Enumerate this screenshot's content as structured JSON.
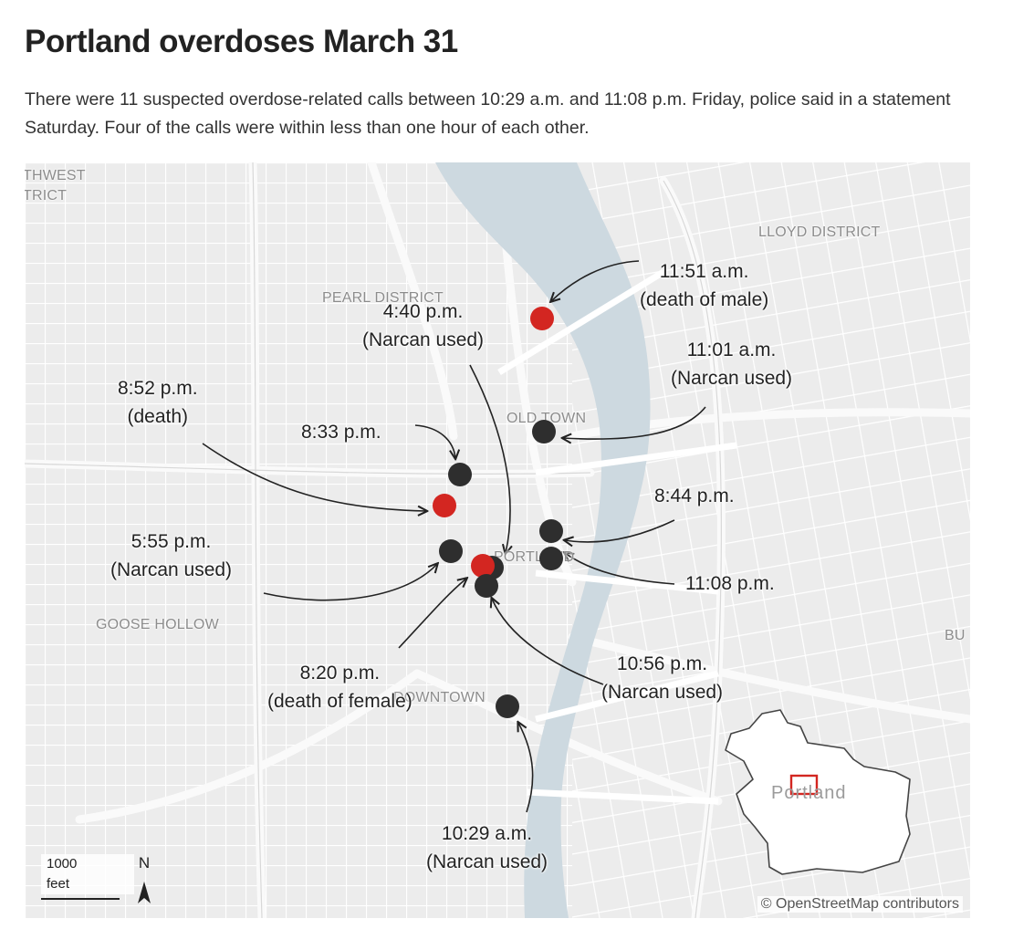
{
  "headline": "Portland overdoses March 31",
  "dek": "There were 11 suspected overdose-related calls between 10:29 a.m. and 11:08 p.m. Friday, police said in a statement Saturday. Four of the calls were within less than one hour of each other.",
  "colors": {
    "water": "#cdd9e0",
    "land": "#ececec",
    "street": "#ffffff",
    "death_marker": "#d32621",
    "overdose_marker": "#2e2e2e"
  },
  "map": {
    "districts": {
      "northwest": "THWEST\nTRICT",
      "lloyd": "LLOYD DISTRICT",
      "pearl": "PEARL DISTRICT",
      "old_town": "OLD TOWN",
      "portland": "PORTLAND",
      "goose_hollow": "GOOSE HOLLOW",
      "downtown": "DOWNTOWN",
      "buckman": "BU"
    },
    "callouts": {
      "c1151am": {
        "time": "11:51 a.m.",
        "note": "(death of male)"
      },
      "c440pm": {
        "time": "4:40 p.m.",
        "note": "(Narcan used)"
      },
      "c1101am": {
        "time": "11:01 a.m.",
        "note": "(Narcan used)"
      },
      "c852pm": {
        "time": "8:52 p.m.",
        "note": "(death)"
      },
      "c833pm": {
        "time": "8:33 p.m."
      },
      "c844pm": {
        "time": "8:44 p.m."
      },
      "c555pm": {
        "time": "5:55 p.m.",
        "note": "(Narcan used)"
      },
      "c1108pm": {
        "time": "11:08 p.m."
      },
      "c820pm": {
        "time": "8:20 p.m.",
        "note": "(death of female)"
      },
      "c1056pm": {
        "time": "10:56 p.m.",
        "note": "(Narcan used)"
      },
      "c1029am": {
        "time": "10:29 a.m.",
        "note": "(Narcan used)"
      }
    },
    "scale": {
      "distance": "1000",
      "unit": "feet"
    },
    "north_label": "N",
    "inset_label": "Portland",
    "credit": "© OpenStreetMap contributors"
  }
}
